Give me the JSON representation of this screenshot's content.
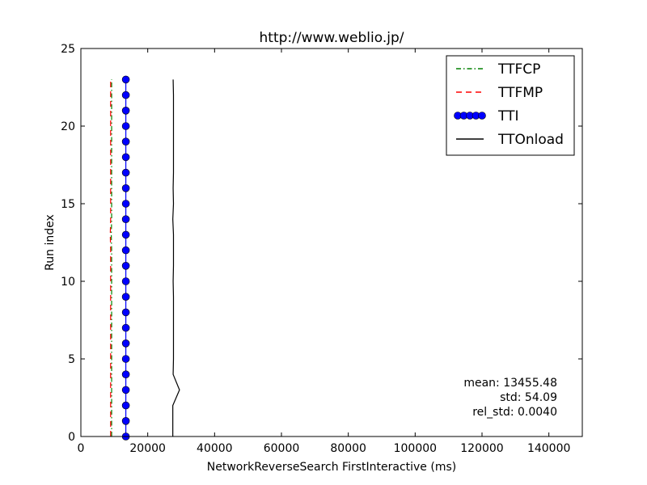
{
  "chart_data": {
    "type": "line",
    "title": "http://www.weblio.jp/",
    "xlabel": "NetworkReverseSearch FirstInteractive (ms)",
    "ylabel": "Run index",
    "xlim": [
      0,
      150000
    ],
    "ylim": [
      0,
      25
    ],
    "xticks": [
      0,
      20000,
      40000,
      60000,
      80000,
      100000,
      120000,
      140000
    ],
    "yticks": [
      0,
      5,
      10,
      15,
      20,
      25
    ],
    "grid": false,
    "legend_position": "top-right",
    "y": [
      0,
      1,
      2,
      3,
      4,
      5,
      6,
      7,
      8,
      9,
      10,
      11,
      12,
      13,
      14,
      15,
      16,
      17,
      18,
      19,
      20,
      21,
      22,
      23
    ],
    "series": [
      {
        "name": "TTFCP",
        "color": "#008000",
        "style": "dash-dot",
        "x": [
          9200,
          9200,
          9200,
          9200,
          9200,
          9200,
          9200,
          9200,
          9200,
          9200,
          9200,
          9200,
          9200,
          9100,
          9200,
          9200,
          9200,
          9200,
          9200,
          9200,
          9200,
          9200,
          9200,
          9200
        ]
      },
      {
        "name": "TTFMP",
        "color": "#ff0000",
        "style": "dashed",
        "x": [
          8900,
          8900,
          8900,
          8900,
          8900,
          8900,
          8900,
          8900,
          8900,
          8900,
          8900,
          8900,
          8900,
          8800,
          8900,
          8900,
          8900,
          8900,
          8900,
          8900,
          8900,
          8900,
          8900,
          8900
        ]
      },
      {
        "name": "TTI",
        "color": "#0000ff",
        "style": "solid-markers",
        "x": [
          13450,
          13450,
          13450,
          13450,
          13450,
          13450,
          13450,
          13450,
          13450,
          13450,
          13450,
          13450,
          13450,
          13450,
          13450,
          13450,
          13450,
          13450,
          13450,
          13450,
          13450,
          13450,
          13450,
          13450
        ]
      },
      {
        "name": "TTOnload",
        "color": "#000000",
        "style": "solid",
        "x": [
          27500,
          27500,
          27500,
          29500,
          27600,
          27700,
          27700,
          27700,
          27700,
          27700,
          27600,
          27700,
          27700,
          27700,
          27500,
          27700,
          27600,
          27700,
          27700,
          27700,
          27700,
          27700,
          27700,
          27600
        ]
      }
    ],
    "annotation": {
      "mean": "mean: 13455.48",
      "std": "std: 54.09",
      "rel_std": "rel_std: 0.0040"
    }
  }
}
